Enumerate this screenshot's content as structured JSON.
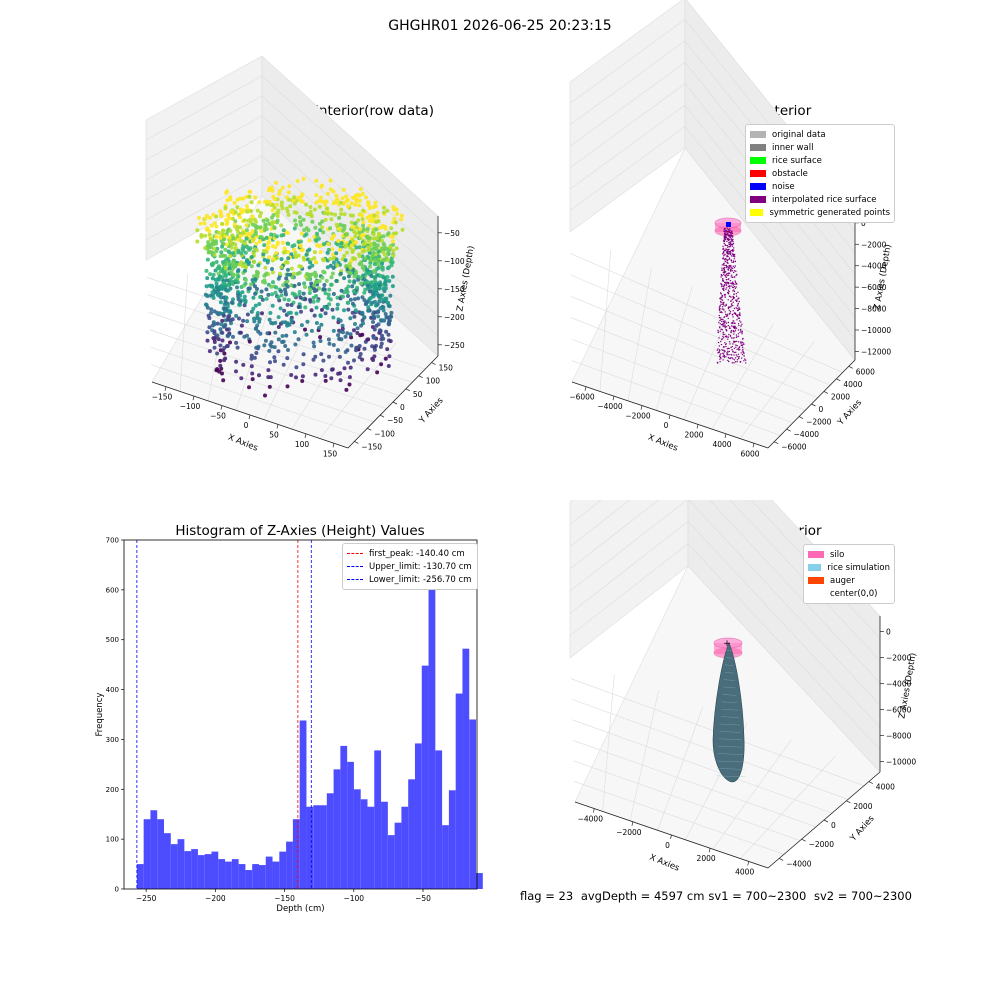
{
  "suptitle": "GHGHR01 2026-06-25 20:23:15",
  "footer": {
    "flag": "flag = 23",
    "avg": "avgDepth = 4597 cm",
    "sv1": "sv1 = 700~2300",
    "sv2": "sv2 = 700~2300"
  },
  "chart_data": [
    {
      "type": "scatter",
      "title": "3D Plot of Silo Interior(row data)",
      "xlabel": "X Axies",
      "ylabel": "Y Axies",
      "zlabel": "Z Axies (Depth)",
      "x_ticks": [
        "−150",
        "−100",
        "−50",
        "0",
        "50",
        "100",
        "150"
      ],
      "y_ticks": [
        "−150",
        "−100",
        "−50",
        "0",
        "50",
        "100",
        "150"
      ],
      "z_ticks": [
        "−50",
        "−100",
        "−150",
        "−200",
        "−250"
      ],
      "xlim": [
        -170,
        170
      ],
      "ylim": [
        -170,
        170
      ],
      "zlim": [
        -270,
        -20
      ],
      "colormap": "viridis"
    },
    {
      "type": "scatter",
      "title": "3D classify of Silo Interior",
      "xlabel": "X Axies",
      "ylabel": "Y Axies",
      "zlabel": "Z Axies (Depth)",
      "x_ticks": [
        "−6000",
        "−4000",
        "−2000",
        "0",
        "2000",
        "4000",
        "6000"
      ],
      "y_ticks": [
        "−6000",
        "−4000",
        "−2000",
        "0",
        "2000",
        "4000",
        "6000"
      ],
      "z_ticks": [
        "0",
        "−2000",
        "−4000",
        "−6000",
        "−8000",
        "−10000",
        "−12000"
      ],
      "legend": [
        {
          "label": "original data",
          "color": "#b3b3b3"
        },
        {
          "label": "inner wall",
          "color": "#808080"
        },
        {
          "label": "rice surface",
          "color": "#00ff00"
        },
        {
          "label": "obstacle",
          "color": "#ff0000"
        },
        {
          "label": "noise",
          "color": "#0000ff"
        },
        {
          "label": "interpolated rice surface",
          "color": "#800080"
        },
        {
          "label": "symmetric generated points",
          "color": "#ffff00"
        }
      ]
    },
    {
      "type": "bar",
      "title": "Histogram of Z-Axies (Height) Values",
      "xlabel": "Depth (cm)",
      "ylabel": "Frequency",
      "xlim": [
        -266,
        -11
      ],
      "ylim": [
        0,
        700
      ],
      "x_ticks": [
        -250,
        -200,
        -150,
        -100,
        -50
      ],
      "y_ticks": [
        0,
        100,
        200,
        300,
        400,
        500,
        600,
        700
      ],
      "bar_color": "#4d4dff",
      "bin_start": -256.7,
      "bin_width": 4.9,
      "values": [
        50,
        140,
        158,
        140,
        112,
        90,
        100,
        76,
        80,
        68,
        70,
        75,
        60,
        55,
        60,
        50,
        38,
        50,
        48,
        65,
        55,
        75,
        95,
        140,
        338,
        165,
        168,
        168,
        192,
        240,
        287,
        255,
        200,
        180,
        165,
        278,
        175,
        108,
        133,
        165,
        220,
        292,
        448,
        650,
        278,
        128,
        198,
        392,
        482,
        340,
        32
      ],
      "lines": [
        {
          "label": "first_peak: -140.40 cm",
          "x": -140.4,
          "color": "#ff0000"
        },
        {
          "label": "Upper_limit: -130.70 cm",
          "x": -130.7,
          "color": "#0000ff"
        },
        {
          "label": "Lower_limit: -256.70 cm",
          "x": -256.7,
          "color": "#0000ff"
        }
      ]
    },
    {
      "type": "scatter",
      "title": "3D simulation of Silo Interior",
      "xlabel": "X Axies",
      "ylabel": "Y Axies",
      "zlabel": "Z Axies (Depth)",
      "x_ticks": [
        "−4000",
        "−2000",
        "0",
        "2000",
        "4000"
      ],
      "y_ticks": [
        "−4000",
        "−2000",
        "0",
        "2000",
        "4000"
      ],
      "z_ticks": [
        "0",
        "−2000",
        "−4000",
        "−6000",
        "−8000",
        "−10000"
      ],
      "legend": [
        {
          "label": "silo",
          "color": "#ff69b4"
        },
        {
          "label": "rice simulation",
          "color": "#87ceeb"
        },
        {
          "label": "auger",
          "color": "#ff4500"
        },
        {
          "label": "center(0,0)",
          "color": ""
        }
      ]
    }
  ]
}
